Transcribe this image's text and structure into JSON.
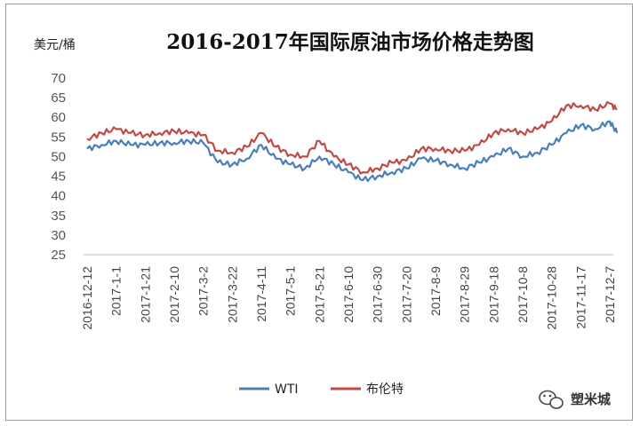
{
  "chart_data": {
    "type": "line",
    "title": "2016-2017年国际原油市场价格走势图",
    "ylabel": "美元/桶",
    "xlabel": "",
    "ylim": [
      25,
      70
    ],
    "yticks": [
      25,
      30,
      35,
      40,
      45,
      50,
      55,
      60,
      65,
      70
    ],
    "grid": false,
    "legend": "bottom",
    "categories": [
      "2016-12-12",
      "2017-1-1",
      "2017-1-21",
      "2017-2-10",
      "2017-3-2",
      "2017-3-22",
      "2017-4-11",
      "2017-5-1",
      "2017-5-21",
      "2017-6-10",
      "2017-6-30",
      "2017-7-20",
      "2017-8-9",
      "2017-8-29",
      "2017-9-18",
      "2017-10-8",
      "2017-10-28",
      "2017-11-17",
      "2017-12-7"
    ],
    "x": [
      "2016-12-12",
      "2016-12-22",
      "2017-1-1",
      "2017-1-11",
      "2017-1-21",
      "2017-1-31",
      "2017-2-10",
      "2017-2-20",
      "2017-3-2",
      "2017-3-12",
      "2017-3-22",
      "2017-4-1",
      "2017-4-11",
      "2017-4-21",
      "2017-5-1",
      "2017-5-11",
      "2017-5-21",
      "2017-5-31",
      "2017-6-10",
      "2017-6-20",
      "2017-6-30",
      "2017-7-10",
      "2017-7-20",
      "2017-7-30",
      "2017-8-9",
      "2017-8-19",
      "2017-8-29",
      "2017-9-8",
      "2017-9-18",
      "2017-9-28",
      "2017-10-8",
      "2017-10-18",
      "2017-10-28",
      "2017-11-7",
      "2017-11-17",
      "2017-11-27",
      "2017-12-7",
      "2017-12-12"
    ],
    "series": [
      {
        "name": "WTI",
        "color": "#4a7ebb",
        "values": [
          52,
          53,
          54,
          53,
          53,
          53.5,
          53.5,
          54,
          53.5,
          48.5,
          48,
          49.5,
          53,
          49.5,
          48,
          47,
          50,
          48,
          46,
          44,
          45,
          46,
          47,
          49.5,
          49,
          48,
          47,
          48.5,
          50,
          52,
          50,
          51,
          53,
          56,
          58,
          57,
          59,
          56
        ]
      },
      {
        "name": "布伦特",
        "color": "#be4b48",
        "values": [
          54.5,
          56,
          57,
          56,
          55.5,
          56,
          56.5,
          56,
          55.5,
          51.5,
          51,
          52.5,
          56,
          52.5,
          50.5,
          50,
          54,
          50,
          48,
          46,
          47,
          48.5,
          49,
          52,
          52,
          51.5,
          51.5,
          53,
          56,
          57,
          56,
          57,
          59,
          63,
          63,
          62,
          63.5,
          62
        ]
      }
    ]
  },
  "watermark": "塑米城"
}
